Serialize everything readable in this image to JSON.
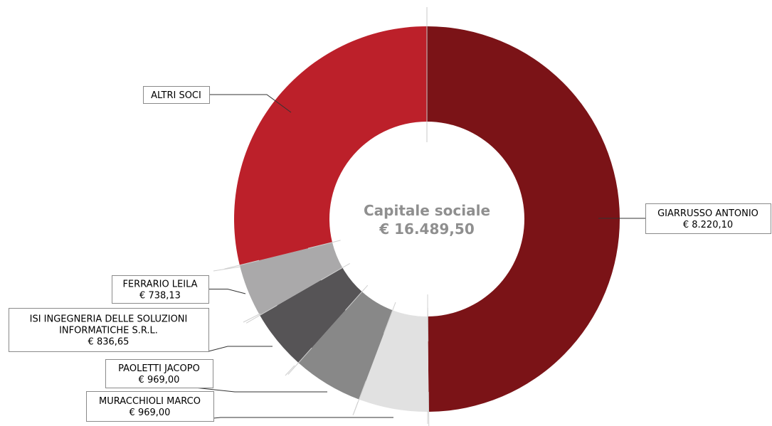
{
  "chart_data": {
    "type": "pie",
    "donut": true,
    "center_title": "Capitale sociale",
    "center_value": "€ 16.489,50",
    "slices": [
      {
        "name": "GIARRUSSO ANTONIO",
        "value": 8220.1,
        "value_label": "€ 8.220,10",
        "color": "#7b1317"
      },
      {
        "name": "MURACCHIOLI MARCO",
        "value": 969.0,
        "value_label": "€ 969,00",
        "color": "#e1e1e1"
      },
      {
        "name": "PAOLETTI JACOPO",
        "value": 969.0,
        "value_label": "€ 969,00",
        "color": "#888888"
      },
      {
        "name": "ISI INGEGNERIA DELLE SOLUZIONI INFORMATICHE S.R.L.",
        "label_lines": [
          "ISI INGEGNERIA DELLE SOLUZIONI",
          "INFORMATICHE S.R.L."
        ],
        "value": 836.65,
        "value_label": "€ 836,65",
        "color": "#565456"
      },
      {
        "name": "FERRARIO LEILA",
        "value": 738.13,
        "value_label": "€ 738,13",
        "color": "#aaa9aa"
      },
      {
        "name": "ALTRI SOCI",
        "value": 4756.62,
        "value_label": "",
        "color": "#bc202a"
      }
    ]
  }
}
